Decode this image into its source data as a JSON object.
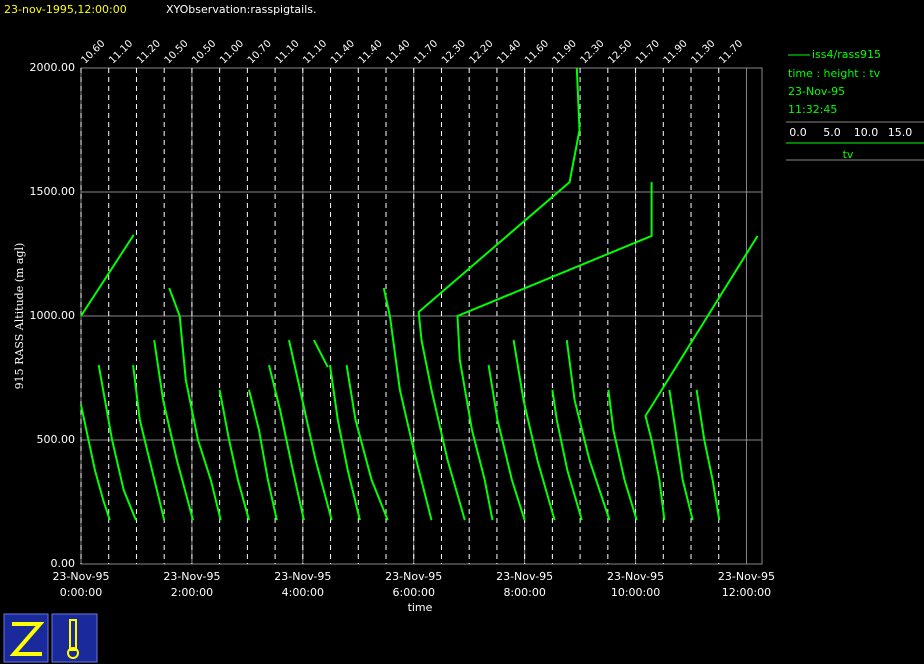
{
  "chart_data": {
    "type": "line",
    "timestamp": "23-nov-1995,12:00:00",
    "title": "XYObservation:rasspigtails.",
    "xlabel": "time",
    "ylabel": "915 RASS Altitude (m agl)",
    "xlim": [
      0,
      12.28
    ],
    "ylim": [
      0,
      2000
    ],
    "xticks": [
      {
        "value": 0,
        "label": "0:00:00"
      },
      {
        "value": 2,
        "label": "2:00:00"
      },
      {
        "value": 4,
        "label": "4:00:00"
      },
      {
        "value": 6,
        "label": "6:00:00"
      },
      {
        "value": 8,
        "label": "8:00:00"
      },
      {
        "value": 10,
        "label": "10:00:00"
      },
      {
        "value": 12,
        "label": "12:00:00"
      }
    ],
    "xtick_dates": [
      "23-Nov-95",
      "23-Nov-95",
      "23-Nov-95",
      "23-Nov-95",
      "23-Nov-95",
      "23-Nov-95",
      "23-Nov-95"
    ],
    "yticks": [
      {
        "value": 0,
        "label": "0.00"
      },
      {
        "value": 500,
        "label": "500.00"
      },
      {
        "value": 1000,
        "label": "1000.00"
      },
      {
        "value": 1500,
        "label": "1500.00"
      },
      {
        "value": 2000,
        "label": "2000.00"
      }
    ],
    "grid": true,
    "profile_times": [
      0,
      0.5,
      1,
      1.5,
      2,
      2.5,
      3,
      3.5,
      4,
      4.5,
      5,
      5.5,
      6,
      6.5,
      7,
      7.5,
      8,
      8.5,
      9,
      9.5,
      10,
      10.5,
      11,
      11.5
    ],
    "profile_labels": [
      "10.60",
      "11.10",
      "11.20",
      "10.50",
      "10.50",
      "11.00",
      "10.70",
      "11.10",
      "11.10",
      "11.40",
      "11.40",
      "11.40",
      "11.70",
      "12.30",
      "12.20",
      "11.40",
      "11.60",
      "11.90",
      "12.30",
      "12.50",
      "11.70",
      "11.90",
      "11.30",
      "11.70"
    ],
    "series": [
      {
        "name": "iss4/rass915",
        "color": "#00ff00",
        "x": [
          0,
          0.25,
          0.4,
          0.52,
          null,
          0,
          0.95,
          null,
          0.32,
          0.56,
          0.77,
          0.99,
          null,
          0.94,
          1.06,
          1.28,
          1.5,
          null,
          1.32,
          1.48,
          1.73,
          2.02,
          null,
          1.59,
          1.78,
          1.89,
          2.11,
          2.34,
          2.52,
          null,
          2.5,
          2.67,
          2.83,
          3.03,
          null,
          3.03,
          3.21,
          3.37,
          3.53,
          null,
          3.39,
          3.59,
          3.82,
          4.02,
          null,
          3.75,
          3.95,
          4.23,
          4.52,
          null,
          4.2,
          4.45,
          null,
          4.49,
          4.63,
          4.81,
          5.03,
          null,
          4.79,
          4.95,
          5.24,
          5.53,
          null,
          5.46,
          5.57,
          5.75,
          6.0,
          6.32,
          null,
          8.94,
          8.99,
          8.81,
          6.09,
          6.14,
          6.32,
          6.61,
          6.92,
          null,
          10.29,
          10.29,
          6.79,
          6.83,
          7.05,
          7.28,
          7.42,
          null,
          7.35,
          7.51,
          7.77,
          8.0,
          null,
          7.8,
          7.98,
          8.23,
          8.54,
          null,
          8.5,
          8.58,
          8.77,
          9.03,
          null,
          8.76,
          8.9,
          9.17,
          9.53,
          null,
          9.51,
          9.6,
          9.8,
          10.02,
          null,
          12.2,
          10.18,
          10.29,
          10.43,
          10.52,
          null,
          10.61,
          10.72,
          10.85,
          11.03,
          null,
          11.1,
          11.24,
          11.39,
          11.51
        ],
        "y": [
          641,
          379,
          258,
          177,
          null,
          1000,
          1327,
          null,
          802,
          500,
          298,
          177,
          null,
          802,
          581,
          379,
          177,
          null,
          903,
          661,
          419,
          177,
          null,
          1113,
          1000,
          742,
          500,
          339,
          177,
          null,
          702,
          500,
          339,
          177,
          null,
          702,
          540,
          339,
          177,
          null,
          802,
          621,
          379,
          177,
          null,
          903,
          702,
          419,
          177,
          null,
          903,
          794,
          null,
          802,
          581,
          379,
          177,
          null,
          802,
          581,
          339,
          177,
          null,
          1113,
          1000,
          702,
          460,
          177,
          null,
          2000,
          1750,
          1540,
          1016,
          903,
          702,
          419,
          177,
          null,
          1540,
          1323,
          1000,
          823,
          540,
          339,
          177,
          null,
          802,
          581,
          339,
          177,
          null,
          903,
          661,
          419,
          177,
          null,
          702,
          581,
          379,
          177,
          null,
          903,
          661,
          419,
          177,
          null,
          702,
          540,
          339,
          177,
          null,
          1323,
          597,
          500,
          339,
          177,
          null,
          702,
          540,
          339,
          177,
          null,
          702,
          500,
          339,
          177
        ]
      }
    ],
    "legend_date": "23-Nov-95",
    "legend_time": "11:32:45",
    "legend_axes": "time : height : tv",
    "tv_label": "tv",
    "tv_ticks": [
      {
        "value": 0,
        "label": "0.0"
      },
      {
        "value": 5,
        "label": "5.0"
      },
      {
        "value": 10,
        "label": "10.0"
      },
      {
        "value": 15,
        "label": "15.0"
      }
    ]
  }
}
